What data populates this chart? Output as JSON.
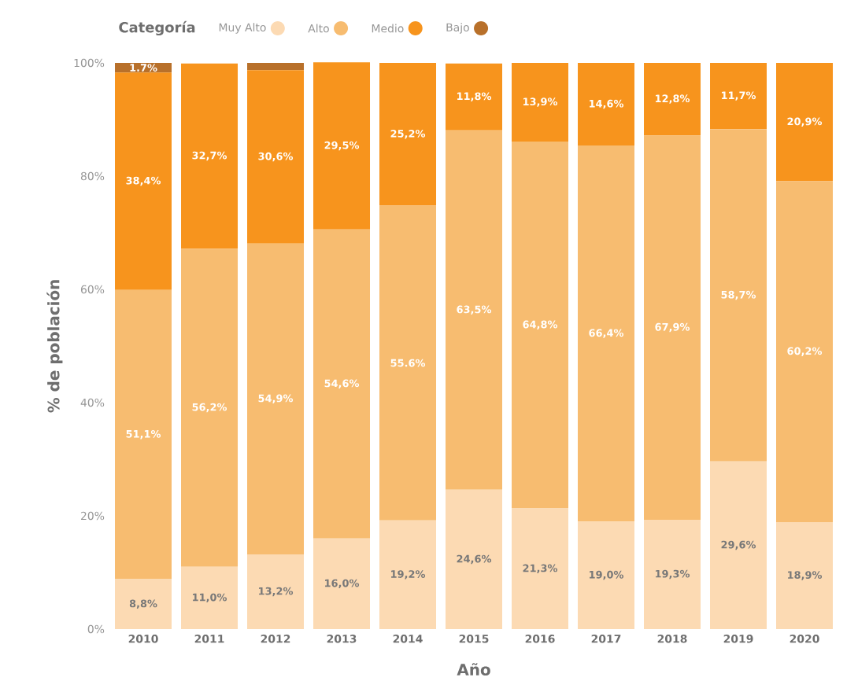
{
  "chart_data": {
    "type": "bar",
    "stacked": true,
    "xlabel": "Año",
    "ylabel": "% de población",
    "legend_title": "Categoría",
    "legend": "top left",
    "categories": [
      "2010",
      "2011",
      "2012",
      "2013",
      "2014",
      "2015",
      "2016",
      "2017",
      "2018",
      "2019",
      "2020"
    ],
    "ylim": [
      0,
      100
    ],
    "yticks": [
      {
        "value": 0,
        "label": "0%"
      },
      {
        "value": 20,
        "label": "20%"
      },
      {
        "value": 40,
        "label": "40%"
      },
      {
        "value": 60,
        "label": "60%"
      },
      {
        "value": 80,
        "label": "80%"
      },
      {
        "value": 100,
        "label": "100%"
      }
    ],
    "series": [
      {
        "name": "Muy Alto",
        "color": "#fcdab3",
        "values": [
          8.8,
          11.0,
          13.2,
          16.0,
          19.2,
          24.6,
          21.3,
          19.0,
          19.3,
          29.6,
          18.9
        ],
        "value_labels": [
          "8,8%",
          "11,0%",
          "13,2%",
          "16,0%",
          "19,2%",
          "24,6%",
          "21,3%",
          "19,0%",
          "19,3%",
          "29,6%",
          "18,9%"
        ]
      },
      {
        "name": "Alto",
        "color": "#f7bc70",
        "values": [
          51.1,
          56.2,
          54.9,
          54.6,
          55.6,
          63.5,
          64.8,
          66.4,
          67.9,
          58.7,
          60.2
        ],
        "value_labels": [
          "51,1%",
          "56,2%",
          "54,9%",
          "54,6%",
          "55.6%",
          "63,5%",
          "64,8%",
          "66,4%",
          "67,9%",
          "58,7%",
          "60,2%"
        ]
      },
      {
        "name": "Medio",
        "color": "#f7941d",
        "values": [
          38.4,
          32.7,
          30.6,
          29.5,
          25.2,
          11.8,
          13.9,
          14.6,
          12.8,
          11.7,
          20.9
        ],
        "value_labels": [
          "38,4%",
          "32,7%",
          "30,6%",
          "29,5%",
          "25,2%",
          "11,8%",
          "13,9%",
          "14,6%",
          "12,8%",
          "11,7%",
          "20,9%"
        ]
      },
      {
        "name": "Bajo",
        "color": "#b8702a",
        "values": [
          1.7,
          null,
          1.3,
          null,
          null,
          null,
          null,
          null,
          null,
          null,
          null
        ],
        "value_labels": [
          "1.7%",
          null,
          null,
          null,
          null,
          null,
          null,
          null,
          null,
          null,
          null
        ]
      }
    ]
  }
}
